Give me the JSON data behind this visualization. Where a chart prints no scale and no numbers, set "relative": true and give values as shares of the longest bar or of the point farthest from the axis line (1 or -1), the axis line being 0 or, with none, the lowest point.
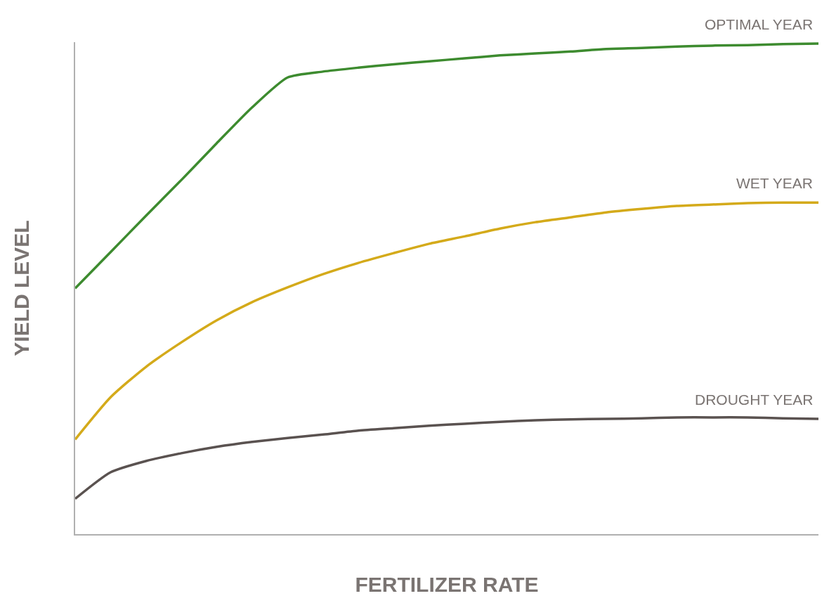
{
  "chart_data": {
    "type": "line",
    "relative": true,
    "xlabel": "FERTILIZER RATE",
    "ylabel": "YIELD LEVEL",
    "categories": [
      null,
      null,
      null,
      null,
      null,
      null,
      null,
      null,
      null,
      null,
      null,
      null,
      null,
      null,
      null,
      null,
      null,
      null,
      null,
      null,
      null,
      null
    ],
    "series": [
      {
        "name": "OPTIMAL YEAR",
        "color": "#3d8b2f",
        "values": [
          0.501,
          0.575,
          0.649,
          0.722,
          0.797,
          0.87,
          0.931,
          0.943,
          0.951,
          0.958,
          0.964,
          0.97,
          0.976,
          0.98,
          0.984,
          0.989,
          0.991,
          0.994,
          0.996,
          0.997,
          0.999,
          1
        ]
      },
      {
        "name": "WET YEAR",
        "color": "#d4aa1a",
        "values": [
          0.193,
          0.279,
          0.341,
          0.391,
          0.436,
          0.473,
          0.503,
          0.53,
          0.553,
          0.573,
          0.592,
          0.607,
          0.623,
          0.636,
          0.646,
          0.656,
          0.663,
          0.669,
          0.672,
          0.675,
          0.676,
          0.676
        ]
      },
      {
        "name": "DROUGHT YEAR",
        "color": "#5a5250",
        "values": [
          0.072,
          0.126,
          0.149,
          0.165,
          0.178,
          0.188,
          0.196,
          0.203,
          0.211,
          0.216,
          0.221,
          0.225,
          0.229,
          0.232,
          0.234,
          0.235,
          0.236,
          0.238,
          0.238,
          0.238,
          0.236,
          0.235
        ]
      }
    ],
    "legend": false,
    "marker": "none",
    "line_style": "solid"
  }
}
